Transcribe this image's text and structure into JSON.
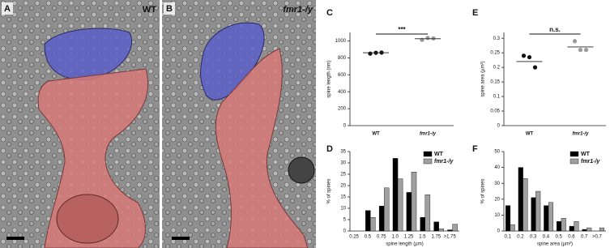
{
  "images": [
    {
      "letter": "A",
      "label": "WT"
    },
    {
      "letter": "B",
      "label": "fmr1-/y"
    }
  ],
  "chart_data": [
    {
      "type": "dot",
      "letter": "C",
      "ylabel": "spine length (nm)",
      "categories": [
        "WT",
        "fmr1-/y"
      ],
      "values": [
        [
          850,
          860,
          862
        ],
        [
          1012,
          1035,
          1030
        ]
      ],
      "means": [
        860,
        1025
      ],
      "significance": "***",
      "ylim": [
        0,
        1100
      ],
      "yticks": [
        0,
        200,
        400,
        600,
        800,
        1000
      ],
      "point_color": "#111",
      "mean_color": "#222",
      "colors": [
        "#111",
        "#999"
      ]
    },
    {
      "type": "bar",
      "letter": "D",
      "ylabel": "% of spines",
      "xlabel": "spine length (µm)",
      "categories": [
        "0.25",
        "0.5",
        "0.75",
        "1.0",
        "1.25",
        "1.5",
        "1.75",
        ">1.75"
      ],
      "series": [
        {
          "name": "WT",
          "color": "#000",
          "values": [
            0,
            9,
            11,
            32,
            17,
            6,
            4,
            0.5
          ]
        },
        {
          "name": "fmr1-/y",
          "color": "#a0a0a0",
          "values": [
            0,
            6,
            19,
            23,
            26,
            16,
            1,
            3
          ]
        }
      ],
      "ylim": [
        0,
        35
      ],
      "yticks": [
        0,
        5,
        10,
        15,
        20,
        25,
        30,
        35
      ],
      "legend": "top-right"
    },
    {
      "type": "dot",
      "letter": "E",
      "ylabel": "spine area (µm²)",
      "categories": [
        "WT",
        "fmr1-/y"
      ],
      "values": [
        [
          0.24,
          0.235,
          0.2
        ],
        [
          0.29,
          0.26,
          0.26
        ]
      ],
      "means": [
        0.22,
        0.27
      ],
      "significance": "n.s.",
      "ylim": [
        0,
        0.32
      ],
      "yticks": [
        0,
        0.05,
        0.1,
        0.15,
        0.2,
        0.25,
        0.3
      ],
      "point_color": "#111",
      "mean_color": "#222",
      "colors": [
        "#111",
        "#999"
      ]
    },
    {
      "type": "bar",
      "letter": "F",
      "ylabel": "% of spines",
      "xlabel": "spine area (µm²)",
      "categories": [
        "0.1",
        "0.2",
        "0.3",
        "0.4",
        "0.5",
        "0.6",
        "0.7",
        ">0.7"
      ],
      "series": [
        {
          "name": "WT",
          "color": "#000",
          "values": [
            16,
            40,
            21,
            16,
            6,
            3,
            1,
            0
          ]
        },
        {
          "name": "fmr1-/y",
          "color": "#a0a0a0",
          "values": [
            4,
            33,
            25,
            18,
            8,
            6,
            2,
            2
          ]
        }
      ],
      "ylim": [
        0,
        50
      ],
      "yticks": [
        0,
        10,
        20,
        30,
        40,
        50
      ],
      "legend": "top-right"
    }
  ]
}
